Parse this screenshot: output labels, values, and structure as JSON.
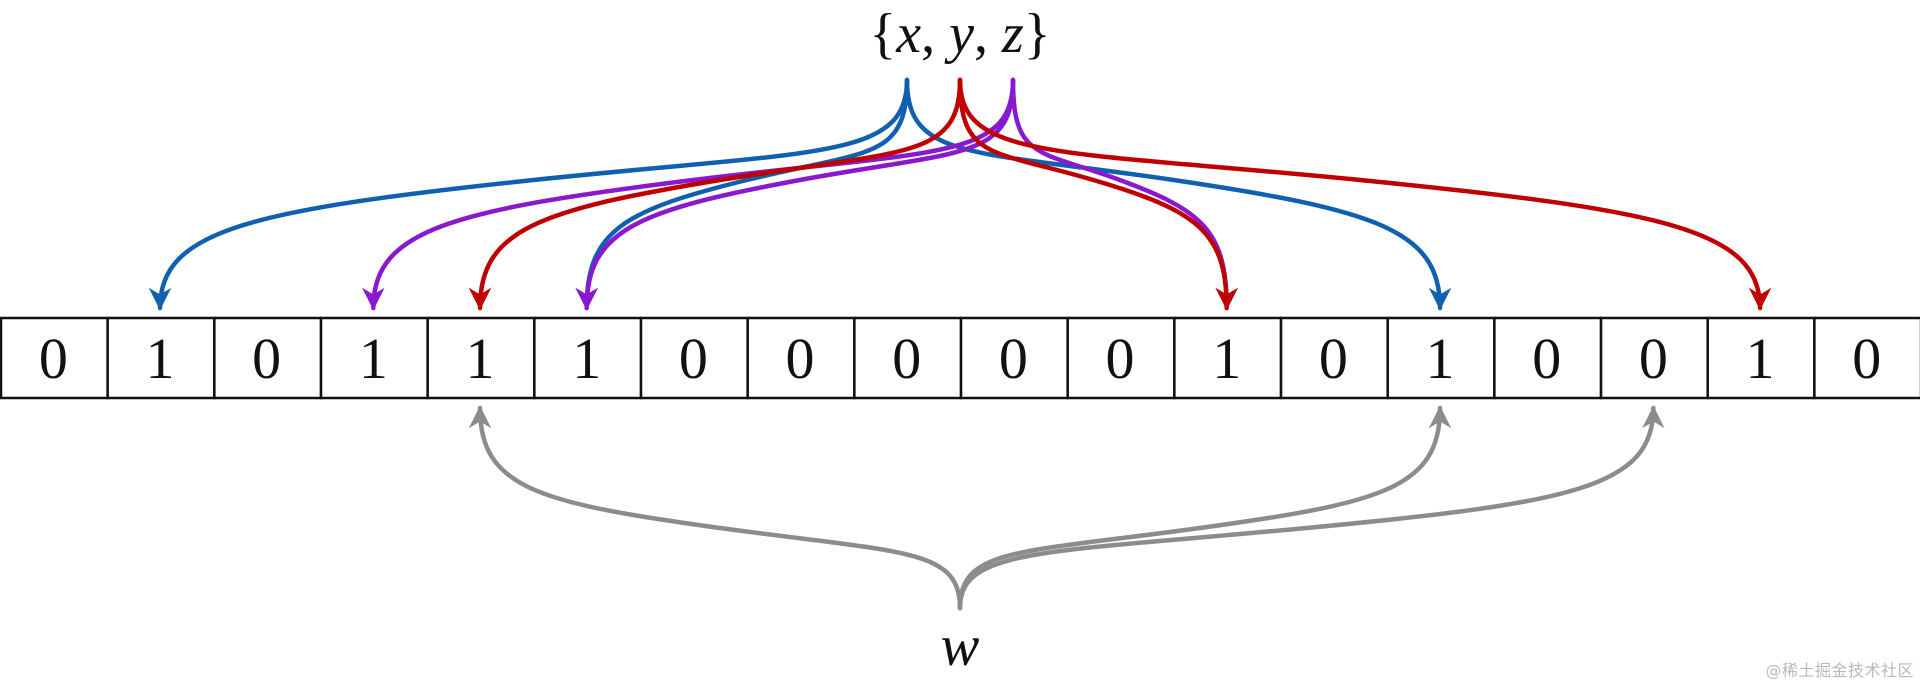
{
  "set_label": {
    "open": "{",
    "x": "x",
    "sep1": ", ",
    "y": "y",
    "sep2": ", ",
    "z": "z",
    "close": "}"
  },
  "query_label": "w",
  "bits": [
    "0",
    "1",
    "0",
    "1",
    "1",
    "1",
    "0",
    "0",
    "0",
    "0",
    "0",
    "1",
    "0",
    "1",
    "0",
    "0",
    "1",
    "0"
  ],
  "colors": {
    "x": "#1060b0",
    "y": "#c00000",
    "z": "#8a18cc",
    "w": "#8c8c8c",
    "cell_border": "#111111"
  },
  "mappings": {
    "x": [
      1,
      5,
      13
    ],
    "y": [
      4,
      11,
      16
    ],
    "z": [
      3,
      5,
      11
    ],
    "w": [
      4,
      13,
      15
    ]
  },
  "watermark": "@稀土掘金技术社区"
}
